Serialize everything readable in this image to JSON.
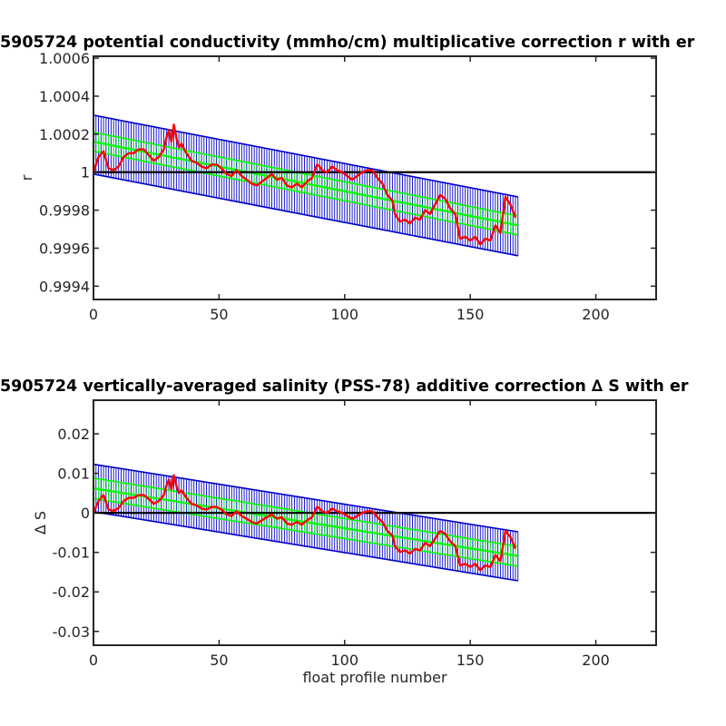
{
  "chart_data": [
    {
      "type": "line",
      "title": "5905724 potential conductivity (mmho/cm) multiplicative correction r with er",
      "xlabel": "",
      "ylabel": "r",
      "xlim": [
        0,
        224
      ],
      "ylim": [
        0.99933,
        1.00061
      ],
      "xticks": [
        0,
        50,
        100,
        150,
        200
      ],
      "xtick_labels": [
        "0",
        "50",
        "100",
        "150",
        "200"
      ],
      "yticks": [
        0.9994,
        0.9996,
        0.9998,
        1.0,
        1.0002,
        1.0004,
        1.0006
      ],
      "ytick_labels": [
        "0.9994",
        "0.9996",
        "0.9998",
        "1",
        "1.0002",
        "1.0004",
        "1.0006"
      ],
      "reference_line": {
        "y": 1.0,
        "color": "#000000"
      },
      "series": [
        {
          "role": "fit_with_error",
          "color_fit": "#00ff00",
          "color_error": "#0000cc",
          "x_start": 0,
          "x_end": 169,
          "start": {
            "center": 1.00016,
            "inner_upper": 1.00021,
            "inner_lower": 1.00011,
            "error_upper": 1.0003,
            "error_lower": 0.99999
          },
          "end": {
            "center": 0.99972,
            "inner_upper": 0.99977,
            "inner_lower": 0.99967,
            "error_upper": 0.99987,
            "error_lower": 0.99956
          }
        },
        {
          "role": "profile_estimate",
          "color": "#ff0000",
          "points": [
            [
              0,
              1.0
            ],
            [
              2,
              1.00008
            ],
            [
              4,
              1.00011
            ],
            [
              6,
              1.00002
            ],
            [
              8,
              1.00001
            ],
            [
              10,
              1.00003
            ],
            [
              12,
              1.00008
            ],
            [
              14,
              1.0001
            ],
            [
              16,
              1.0001
            ],
            [
              18,
              1.00012
            ],
            [
              20,
              1.00012
            ],
            [
              22,
              1.00009
            ],
            [
              24,
              1.00006
            ],
            [
              26,
              1.00008
            ],
            [
              28,
              1.00012
            ],
            [
              29,
              1.00018
            ],
            [
              30,
              1.00022
            ],
            [
              31,
              1.00016
            ],
            [
              32,
              1.00025
            ],
            [
              33,
              1.00018
            ],
            [
              34,
              1.00013
            ],
            [
              35,
              1.00015
            ],
            [
              37,
              1.0001
            ],
            [
              39,
              1.00006
            ],
            [
              41,
              1.00005
            ],
            [
              43,
              1.00003
            ],
            [
              45,
              1.00002
            ],
            [
              47,
              1.00004
            ],
            [
              49,
              1.00004
            ],
            [
              51,
              1.00002
            ],
            [
              53,
              0.99999
            ],
            [
              55,
              0.99998
            ],
            [
              57,
              1.00001
            ],
            [
              59,
              0.99998
            ],
            [
              61,
              0.99996
            ],
            [
              63,
              0.99994
            ],
            [
              65,
              0.99993
            ],
            [
              67,
              0.99995
            ],
            [
              69,
              0.99997
            ],
            [
              71,
              0.99999
            ],
            [
              73,
              0.99996
            ],
            [
              75,
              0.99997
            ],
            [
              77,
              0.99993
            ],
            [
              79,
              0.99992
            ],
            [
              81,
              0.99994
            ],
            [
              83,
              0.99992
            ],
            [
              85,
              0.99995
            ],
            [
              87,
              0.99997
            ],
            [
              89,
              1.00004
            ],
            [
              90,
              1.00003
            ],
            [
              91,
              1.00001
            ],
            [
              93,
              1.0
            ],
            [
              95,
              1.00003
            ],
            [
              97,
              1.00001
            ],
            [
              99,
              1.0
            ],
            [
              101,
              0.99998
            ],
            [
              103,
              0.99996
            ],
            [
              105,
              0.99998
            ],
            [
              107,
              1.0
            ],
            [
              109,
              1.00001
            ],
            [
              111,
              1.00001
            ],
            [
              113,
              0.99997
            ],
            [
              115,
              0.99994
            ],
            [
              117,
              0.99988
            ],
            [
              119,
              0.99985
            ],
            [
              120,
              0.99978
            ],
            [
              122,
              0.99974
            ],
            [
              124,
              0.99975
            ],
            [
              126,
              0.99973
            ],
            [
              128,
              0.99976
            ],
            [
              130,
              0.99975
            ],
            [
              132,
              0.9998
            ],
            [
              134,
              0.99978
            ],
            [
              136,
              0.99983
            ],
            [
              138,
              0.99988
            ],
            [
              140,
              0.99986
            ],
            [
              142,
              0.99981
            ],
            [
              144,
              0.99978
            ],
            [
              146,
              0.99965
            ],
            [
              148,
              0.99966
            ],
            [
              150,
              0.99964
            ],
            [
              152,
              0.99966
            ],
            [
              154,
              0.99962
            ],
            [
              156,
              0.99965
            ],
            [
              158,
              0.99964
            ],
            [
              160,
              0.99972
            ],
            [
              162,
              0.99968
            ],
            [
              164,
              0.99987
            ],
            [
              166,
              0.99983
            ],
            [
              168,
              0.99976
            ]
          ]
        }
      ]
    },
    {
      "type": "line",
      "title": "5905724 vertically-averaged salinity (PSS-78) additive correction ∆ S with er",
      "xlabel": "float profile number",
      "ylabel": "∆ S",
      "xlim": [
        0,
        224
      ],
      "ylim": [
        -0.0335,
        0.0285
      ],
      "xticks": [
        0,
        50,
        100,
        150,
        200
      ],
      "xtick_labels": [
        "0",
        "50",
        "100",
        "150",
        "200"
      ],
      "yticks": [
        -0.03,
        -0.02,
        -0.01,
        0,
        0.01,
        0.02
      ],
      "ytick_labels": [
        "-0.03",
        "-0.02",
        "-0.01",
        "0",
        "0.01",
        "0.02"
      ],
      "reference_line": {
        "y": 0,
        "color": "#000000"
      },
      "series": [
        {
          "role": "fit_with_error",
          "color_fit": "#00ff00",
          "color_error": "#0000cc",
          "x_start": 0,
          "x_end": 169,
          "start": {
            "center": 0.0062,
            "inner_upper": 0.0088,
            "inner_lower": 0.0036,
            "error_upper": 0.0123,
            "error_lower": 0.0003
          },
          "end": {
            "center": -0.0109,
            "inner_upper": -0.0085,
            "inner_lower": -0.0135,
            "error_upper": -0.0048,
            "error_lower": -0.0172
          }
        },
        {
          "role": "profile_estimate",
          "color": "#ff0000",
          "points": [
            [
              0,
              0.0
            ],
            [
              2,
              0.003
            ],
            [
              4,
              0.0045
            ],
            [
              6,
              0.0008
            ],
            [
              8,
              0.0005
            ],
            [
              10,
              0.0012
            ],
            [
              12,
              0.003
            ],
            [
              14,
              0.0038
            ],
            [
              16,
              0.0038
            ],
            [
              18,
              0.0045
            ],
            [
              20,
              0.0045
            ],
            [
              22,
              0.0035
            ],
            [
              24,
              0.0023
            ],
            [
              26,
              0.003
            ],
            [
              28,
              0.0045
            ],
            [
              29,
              0.0068
            ],
            [
              30,
              0.0084
            ],
            [
              31,
              0.006
            ],
            [
              32,
              0.0095
            ],
            [
              33,
              0.0068
            ],
            [
              34,
              0.005
            ],
            [
              35,
              0.0057
            ],
            [
              37,
              0.0038
            ],
            [
              39,
              0.0023
            ],
            [
              41,
              0.0019
            ],
            [
              43,
              0.0011
            ],
            [
              45,
              0.0008
            ],
            [
              47,
              0.0015
            ],
            [
              49,
              0.0015
            ],
            [
              51,
              0.0008
            ],
            [
              53,
              -0.0004
            ],
            [
              55,
              -0.0008
            ],
            [
              57,
              0.0004
            ],
            [
              59,
              -0.0008
            ],
            [
              61,
              -0.0015
            ],
            [
              63,
              -0.0023
            ],
            [
              65,
              -0.0027
            ],
            [
              67,
              -0.0019
            ],
            [
              69,
              -0.0011
            ],
            [
              71,
              -0.0004
            ],
            [
              73,
              -0.0015
            ],
            [
              75,
              -0.0011
            ],
            [
              77,
              -0.0027
            ],
            [
              79,
              -0.003
            ],
            [
              81,
              -0.0023
            ],
            [
              83,
              -0.003
            ],
            [
              85,
              -0.0019
            ],
            [
              87,
              -0.0011
            ],
            [
              89,
              0.0015
            ],
            [
              90,
              0.0011
            ],
            [
              91,
              0.0004
            ],
            [
              93,
              0.0
            ],
            [
              95,
              0.0011
            ],
            [
              97,
              0.0004
            ],
            [
              99,
              0.0
            ],
            [
              101,
              -0.0008
            ],
            [
              103,
              -0.0015
            ],
            [
              105,
              -0.0008
            ],
            [
              107,
              0.0
            ],
            [
              109,
              0.0004
            ],
            [
              111,
              0.0004
            ],
            [
              113,
              -0.0011
            ],
            [
              115,
              -0.0023
            ],
            [
              117,
              -0.0046
            ],
            [
              119,
              -0.0057
            ],
            [
              120,
              -0.0084
            ],
            [
              122,
              -0.0099
            ],
            [
              124,
              -0.0095
            ],
            [
              126,
              -0.0103
            ],
            [
              128,
              -0.0091
            ],
            [
              130,
              -0.0095
            ],
            [
              132,
              -0.0076
            ],
            [
              134,
              -0.0084
            ],
            [
              136,
              -0.0065
            ],
            [
              138,
              -0.0046
            ],
            [
              140,
              -0.0053
            ],
            [
              142,
              -0.0072
            ],
            [
              144,
              -0.0084
            ],
            [
              146,
              -0.0133
            ],
            [
              148,
              -0.0129
            ],
            [
              150,
              -0.0137
            ],
            [
              152,
              -0.0129
            ],
            [
              154,
              -0.0145
            ],
            [
              156,
              -0.0133
            ],
            [
              158,
              -0.0137
            ],
            [
              160,
              -0.0107
            ],
            [
              162,
              -0.0122
            ],
            [
              164,
              -0.0046
            ],
            [
              166,
              -0.0061
            ],
            [
              168,
              -0.0091
            ]
          ]
        }
      ]
    }
  ]
}
